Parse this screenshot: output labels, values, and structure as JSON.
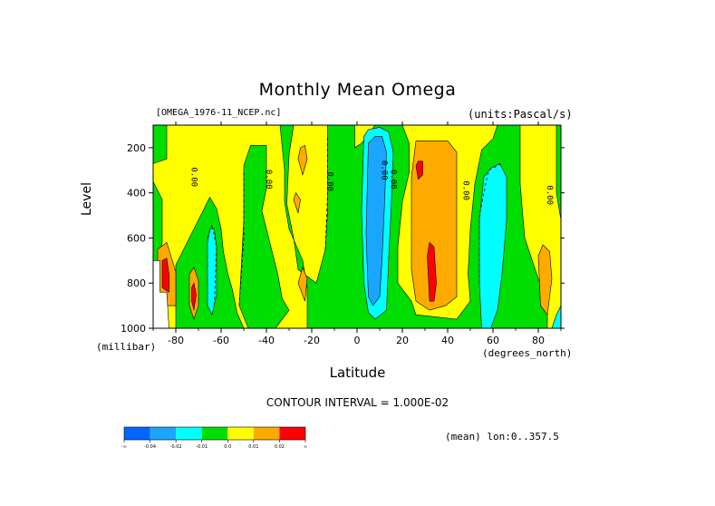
{
  "chart_data": {
    "type": "heatmap",
    "title": "Monthly Mean Omega",
    "subtitle_left": "[OMEGA_1976-11_NCEP.nc]",
    "subtitle_right": "(units:Pascal/s)",
    "xlabel": "Latitude",
    "ylabel": "Level",
    "x_unit": "(degrees_north)",
    "y_unit": "(millibar)",
    "xlim": [
      -90,
      90
    ],
    "ylim": [
      1000,
      100
    ],
    "x_ticks": [
      -80,
      -60,
      -40,
      -20,
      0,
      20,
      40,
      60,
      80
    ],
    "x_tick_labels": [
      "-80",
      "-60",
      "-40",
      "-20",
      "0",
      "20",
      "40",
      "60",
      "80"
    ],
    "y_ticks": [
      200,
      400,
      600,
      800,
      1000
    ],
    "y_tick_labels": [
      "200",
      "400",
      "600",
      "800",
      "1000"
    ],
    "contour_interval_text": "CONTOUR INTERVAL = 1.000E-02",
    "mean_lon_text": "(mean) lon:0..357.5",
    "contour_labels": [
      {
        "text": "0.00",
        "x": -72,
        "y": 330
      },
      {
        "text": "0.00",
        "x": -39,
        "y": 340
      },
      {
        "text": "0.00",
        "x": -12,
        "y": 350
      },
      {
        "text": "0.00",
        "x": 12,
        "y": 300
      },
      {
        "text": "0.00",
        "x": 16,
        "y": 340
      },
      {
        "text": "0.00",
        "x": 48,
        "y": 390
      },
      {
        "text": "0.00",
        "x": 85,
        "y": 410
      }
    ],
    "colorbar": {
      "bins": [
        {
          "color": "#0066ff",
          "label": "-∞"
        },
        {
          "color": "#1aa6ff",
          "label": "-0.04"
        },
        {
          "color": "#00ffff",
          "label": "-0.02"
        },
        {
          "color": "#00dd00",
          "label": "-0.01"
        },
        {
          "color": "#ffff00",
          "label": "0.0"
        },
        {
          "color": "#ffaa00",
          "label": "0.01"
        },
        {
          "color": "#ff0000",
          "label": "0.02"
        }
      ],
      "end_label": "∞"
    },
    "regions": [
      {
        "color": "#ffff00",
        "pts": [
          [
            -90,
            100
          ],
          [
            90,
            100
          ],
          [
            90,
            1000
          ],
          [
            -90,
            1000
          ]
        ]
      },
      {
        "color": "#00dd00",
        "pts": [
          [
            -90,
            100
          ],
          [
            -84,
            100
          ],
          [
            -84,
            250
          ],
          [
            -90,
            270
          ]
        ]
      },
      {
        "color": "#00dd00",
        "pts": [
          [
            -90,
            350
          ],
          [
            -86,
            430
          ],
          [
            -86,
            620
          ],
          [
            -88,
            700
          ],
          [
            -90,
            700
          ]
        ]
      },
      {
        "color": "#00dd00",
        "pts": [
          [
            -80,
            720
          ],
          [
            -76,
            640
          ],
          [
            -72,
            560
          ],
          [
            -68,
            480
          ],
          [
            -65,
            420
          ],
          [
            -62,
            470
          ],
          [
            -60,
            560
          ],
          [
            -59,
            660
          ],
          [
            -57,
            760
          ],
          [
            -55,
            830
          ],
          [
            -53,
            930
          ],
          [
            -50,
            1000
          ],
          [
            -80,
            1000
          ]
        ]
      },
      {
        "color": "#00dd00",
        "pts": [
          [
            -52,
            900
          ],
          [
            -50,
            520
          ],
          [
            -50,
            280
          ],
          [
            -47,
            190
          ],
          [
            -40,
            190
          ],
          [
            -40,
            380
          ],
          [
            -42,
            480
          ],
          [
            -38,
            640
          ],
          [
            -35,
            760
          ],
          [
            -33,
            870
          ],
          [
            -30,
            920
          ],
          [
            -36,
            1000
          ],
          [
            -48,
            1000
          ]
        ]
      },
      {
        "color": "#00dd00",
        "pts": [
          [
            -34,
            100
          ],
          [
            -28,
            100
          ],
          [
            -30,
            230
          ],
          [
            -31,
            450
          ],
          [
            -28,
            600
          ],
          [
            -26,
            740
          ],
          [
            -18,
            800
          ],
          [
            -14,
            650
          ],
          [
            -13,
            480
          ],
          [
            -13,
            100
          ],
          [
            -1,
            100
          ],
          [
            -1,
            200
          ],
          [
            2,
            180
          ],
          [
            8,
            100
          ],
          [
            20,
            100
          ],
          [
            23,
            180
          ],
          [
            23,
            310
          ],
          [
            20,
            440
          ],
          [
            18,
            640
          ],
          [
            18,
            800
          ],
          [
            24,
            880
          ],
          [
            26,
            940
          ],
          [
            44,
            960
          ],
          [
            50,
            880
          ],
          [
            49,
            760
          ],
          [
            50,
            560
          ],
          [
            52,
            360
          ],
          [
            55,
            210
          ],
          [
            60,
            160
          ],
          [
            62,
            100
          ],
          [
            72,
            100
          ],
          [
            72,
            360
          ],
          [
            74,
            600
          ],
          [
            78,
            720
          ],
          [
            84,
            900
          ],
          [
            84,
            1000
          ],
          [
            -22,
            1000
          ],
          [
            -22,
            820
          ],
          [
            -24,
            700
          ],
          [
            -30,
            560
          ],
          [
            -32,
            440
          ],
          [
            -32,
            300
          ]
        ]
      },
      {
        "color": "#00dd00",
        "pts": [
          [
            88,
            100
          ],
          [
            90,
            100
          ],
          [
            90,
            520
          ],
          [
            88,
            400
          ]
        ]
      },
      {
        "color": "#00ffff",
        "pts": [
          [
            3,
            150
          ],
          [
            5,
            120
          ],
          [
            10,
            110
          ],
          [
            14,
            130
          ],
          [
            16,
            220
          ],
          [
            15,
            480
          ],
          [
            14,
            680
          ],
          [
            13,
            920
          ],
          [
            8,
            960
          ],
          [
            5,
            930
          ],
          [
            3,
            800
          ],
          [
            2,
            480
          ]
        ]
      },
      {
        "color": "#00ffff",
        "pts": [
          [
            56,
            330
          ],
          [
            59,
            290
          ],
          [
            63,
            270
          ],
          [
            66,
            330
          ],
          [
            66,
            520
          ],
          [
            64,
            760
          ],
          [
            62,
            920
          ],
          [
            59,
            1000
          ],
          [
            55,
            1000
          ],
          [
            54,
            800
          ],
          [
            54,
            520
          ]
        ]
      },
      {
        "color": "#00ffff",
        "pts": [
          [
            -66,
            620
          ],
          [
            -65,
            560
          ],
          [
            -63,
            560
          ],
          [
            -62,
            640
          ],
          [
            -62,
            850
          ],
          [
            -64,
            940
          ],
          [
            -66,
            900
          ]
        ]
      },
      {
        "color": "#00ffff",
        "pts": [
          [
            88,
            940
          ],
          [
            90,
            900
          ],
          [
            90,
            1000
          ],
          [
            86,
            1000
          ]
        ]
      },
      {
        "color": "#1aa6ff",
        "pts": [
          [
            5,
            180
          ],
          [
            8,
            150
          ],
          [
            11,
            150
          ],
          [
            13,
            220
          ],
          [
            12,
            480
          ],
          [
            11,
            700
          ],
          [
            10,
            860
          ],
          [
            7,
            900
          ],
          [
            5,
            860
          ],
          [
            4,
            580
          ]
        ]
      },
      {
        "color": "#ffaa00",
        "pts": [
          [
            26,
            170
          ],
          [
            40,
            170
          ],
          [
            44,
            220
          ],
          [
            44,
            340
          ],
          [
            44,
            520
          ],
          [
            44,
            700
          ],
          [
            44,
            860
          ],
          [
            39,
            900
          ],
          [
            32,
            920
          ],
          [
            26,
            880
          ],
          [
            24,
            740
          ],
          [
            24,
            520
          ],
          [
            24,
            330
          ]
        ]
      },
      {
        "color": "#ffaa00",
        "pts": [
          [
            -26,
            250
          ],
          [
            -25,
            200
          ],
          [
            -23,
            190
          ],
          [
            -22,
            250
          ],
          [
            -24,
            320
          ]
        ]
      },
      {
        "color": "#ffaa00",
        "pts": [
          [
            -28,
            430
          ],
          [
            -27,
            400
          ],
          [
            -25,
            430
          ],
          [
            -26,
            490
          ]
        ]
      },
      {
        "color": "#ffaa00",
        "pts": [
          [
            -26,
            800
          ],
          [
            -24,
            730
          ],
          [
            -22,
            780
          ],
          [
            -23,
            880
          ]
        ]
      },
      {
        "color": "#ffaa00",
        "pts": [
          [
            -88,
            650
          ],
          [
            -84,
            620
          ],
          [
            -80,
            750
          ],
          [
            -80,
            900
          ],
          [
            -86,
            900
          ],
          [
            -88,
            820
          ]
        ]
      },
      {
        "color": "#ffaa00",
        "pts": [
          [
            -74,
            760
          ],
          [
            -72,
            730
          ],
          [
            -70,
            790
          ],
          [
            -70,
            900
          ],
          [
            -72,
            960
          ],
          [
            -74,
            900
          ]
        ]
      },
      {
        "color": "#ffaa00",
        "pts": [
          [
            80,
            680
          ],
          [
            82,
            630
          ],
          [
            85,
            660
          ],
          [
            86,
            780
          ],
          [
            84,
            940
          ],
          [
            81,
            900
          ]
        ]
      },
      {
        "color": "#ff0000",
        "pts": [
          [
            26,
            280
          ],
          [
            27,
            260
          ],
          [
            29,
            260
          ],
          [
            29,
            320
          ],
          [
            27,
            340
          ]
        ]
      },
      {
        "color": "#ff0000",
        "pts": [
          [
            31,
            680
          ],
          [
            32,
            620
          ],
          [
            34,
            640
          ],
          [
            35,
            800
          ],
          [
            34,
            880
          ],
          [
            32,
            880
          ]
        ]
      },
      {
        "color": "#ff0000",
        "pts": [
          [
            -86,
            700
          ],
          [
            -84,
            690
          ],
          [
            -83,
            760
          ],
          [
            -83,
            840
          ],
          [
            -86,
            820
          ]
        ]
      },
      {
        "color": "#ff0000",
        "pts": [
          [
            -73,
            820
          ],
          [
            -72,
            800
          ],
          [
            -71,
            850
          ],
          [
            -72,
            920
          ],
          [
            -73,
            880
          ]
        ]
      }
    ],
    "missing": [
      {
        "pts": [
          [
            -90,
            700
          ],
          [
            -87,
            700
          ],
          [
            -87,
            840
          ],
          [
            -84,
            840
          ],
          [
            -83,
            1000
          ],
          [
            -90,
            1000
          ]
        ]
      }
    ],
    "dashed_lines": [
      [
        [
          -66,
          600
        ],
        [
          -64,
          540
        ],
        [
          -62,
          640
        ],
        [
          -63,
          900
        ]
      ],
      [
        [
          -52,
          900
        ],
        [
          -50,
          600
        ],
        [
          -50,
          300
        ]
      ],
      [
        [
          -14,
          650
        ],
        [
          -13,
          400
        ],
        [
          -13,
          150
        ]
      ],
      [
        [
          54,
          800
        ],
        [
          54,
          500
        ],
        [
          58,
          300
        ],
        [
          64,
          270
        ]
      ]
    ]
  }
}
